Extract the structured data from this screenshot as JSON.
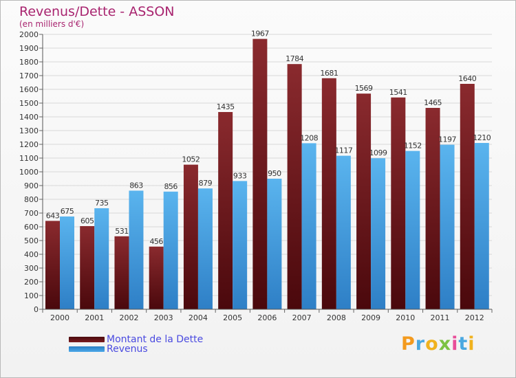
{
  "header": {
    "title": "Revenus/Dette - ASSON",
    "subtitle": "(en milliers d'€)"
  },
  "chart_data": {
    "type": "bar",
    "title": "Revenus/Dette - ASSON",
    "ylabel": "(en milliers d'€)",
    "xlabel": "",
    "categories": [
      "2000",
      "2001",
      "2002",
      "2003",
      "2004",
      "2005",
      "2006",
      "2007",
      "2008",
      "2009",
      "2010",
      "2011",
      "2012"
    ],
    "series": [
      {
        "name": "Montant de la Dette",
        "color": "#7a1a1e",
        "values": [
          643,
          605,
          531,
          456,
          1052,
          1435,
          1967,
          1784,
          1681,
          1569,
          1541,
          1465,
          1640
        ]
      },
      {
        "name": "Revenus",
        "color": "#4ba7e8",
        "values": [
          675,
          735,
          863,
          856,
          879,
          933,
          950,
          1208,
          1117,
          1099,
          1152,
          1197,
          1210
        ]
      }
    ],
    "ylim": [
      0,
      2000
    ],
    "yticks": [
      0,
      100,
      200,
      300,
      400,
      500,
      600,
      700,
      800,
      900,
      1000,
      1100,
      1200,
      1300,
      1400,
      1500,
      1600,
      1700,
      1800,
      1900,
      2000
    ],
    "grid": true,
    "legend_position": "bottom-left"
  },
  "legend": {
    "items": [
      {
        "label": "Montant de la Dette",
        "color": "#7a1a1e"
      },
      {
        "label": "Revenus",
        "color": "#4ba7e8"
      }
    ]
  },
  "logo": {
    "letters": [
      "P",
      "r",
      "o",
      "x",
      "i",
      "t",
      "i"
    ],
    "colors": [
      "#f39a1e",
      "#4aa8e0",
      "#f0b21e",
      "#7cc242",
      "#e84e9a",
      "#4aa8e0",
      "#f0b21e"
    ]
  }
}
